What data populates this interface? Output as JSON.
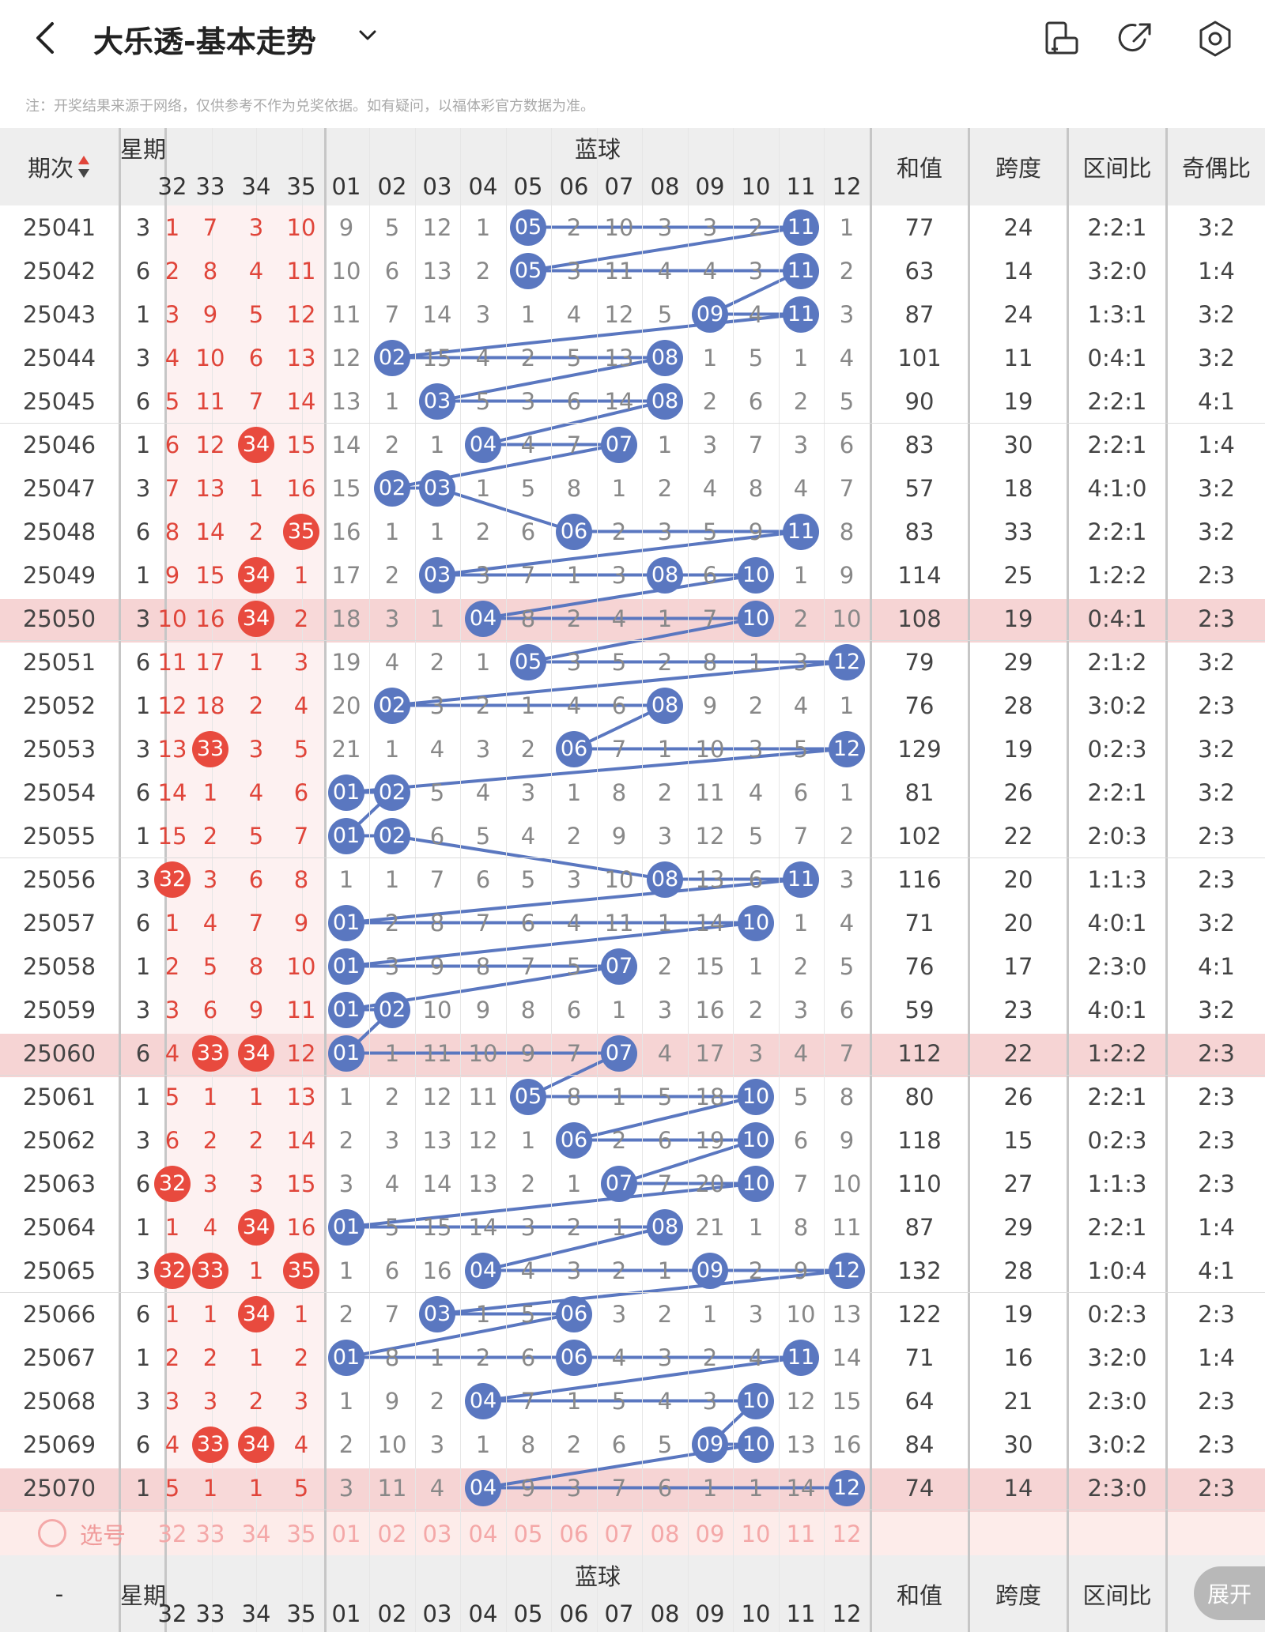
{
  "header": {
    "title": "大乐透-基本走势",
    "note": "注：开奖结果来源于网络，仅供参考不作为兑奖依据。如有疑问，以福体彩官方数据为准。"
  },
  "columns": {
    "period": "期次",
    "week": "星期",
    "blue_group": "蓝球",
    "front_nums": [
      "32",
      "33",
      "34",
      "35"
    ],
    "back_nums": [
      "01",
      "02",
      "03",
      "04",
      "05",
      "06",
      "07",
      "08",
      "09",
      "10",
      "11",
      "12"
    ],
    "sum": "和值",
    "span": "跨度",
    "zone": "区间比",
    "parity": "奇偶比"
  },
  "rows": [
    {
      "p": "25041",
      "w": "3",
      "f": [
        "1",
        "7",
        "3",
        "10"
      ],
      "b": [
        "9",
        "5",
        "12",
        "1",
        "05",
        "2",
        "10",
        "3",
        "3",
        "2",
        "11",
        "1"
      ],
      "s": "77",
      "sp": "24",
      "z": "2:2:1",
      "o": "3:2"
    },
    {
      "p": "25042",
      "w": "6",
      "f": [
        "2",
        "8",
        "4",
        "11"
      ],
      "b": [
        "10",
        "6",
        "13",
        "2",
        "05",
        "3",
        "11",
        "4",
        "4",
        "3",
        "11",
        "2"
      ],
      "s": "63",
      "sp": "14",
      "z": "3:2:0",
      "o": "1:4"
    },
    {
      "p": "25043",
      "w": "1",
      "f": [
        "3",
        "9",
        "5",
        "12"
      ],
      "b": [
        "11",
        "7",
        "14",
        "3",
        "1",
        "4",
        "12",
        "5",
        "09",
        "4",
        "11",
        "3"
      ],
      "s": "87",
      "sp": "24",
      "z": "1:3:1",
      "o": "3:2"
    },
    {
      "p": "25044",
      "w": "3",
      "f": [
        "4",
        "10",
        "6",
        "13"
      ],
      "b": [
        "12",
        "02",
        "15",
        "4",
        "2",
        "5",
        "13",
        "08",
        "1",
        "5",
        "1",
        "4"
      ],
      "s": "101",
      "sp": "11",
      "z": "0:4:1",
      "o": "3:2"
    },
    {
      "p": "25045",
      "w": "6",
      "f": [
        "5",
        "11",
        "7",
        "14"
      ],
      "b": [
        "13",
        "1",
        "03",
        "5",
        "3",
        "6",
        "14",
        "08",
        "2",
        "6",
        "2",
        "5"
      ],
      "s": "90",
      "sp": "19",
      "z": "2:2:1",
      "o": "4:1"
    },
    {
      "p": "25046",
      "w": "1",
      "f": [
        "6",
        "12",
        "34",
        "15"
      ],
      "b": [
        "14",
        "2",
        "1",
        "04",
        "4",
        "7",
        "07",
        "1",
        "3",
        "7",
        "3",
        "6"
      ],
      "s": "83",
      "sp": "30",
      "z": "2:2:1",
      "o": "1:4"
    },
    {
      "p": "25047",
      "w": "3",
      "f": [
        "7",
        "13",
        "1",
        "16"
      ],
      "b": [
        "15",
        "02",
        "03",
        "1",
        "5",
        "8",
        "1",
        "2",
        "4",
        "8",
        "4",
        "7"
      ],
      "s": "57",
      "sp": "18",
      "z": "4:1:0",
      "o": "3:2"
    },
    {
      "p": "25048",
      "w": "6",
      "f": [
        "8",
        "14",
        "2",
        "35"
      ],
      "b": [
        "16",
        "1",
        "1",
        "2",
        "6",
        "06",
        "2",
        "3",
        "5",
        "9",
        "11",
        "8"
      ],
      "s": "83",
      "sp": "33",
      "z": "2:2:1",
      "o": "3:2"
    },
    {
      "p": "25049",
      "w": "1",
      "f": [
        "9",
        "15",
        "34",
        "1"
      ],
      "b": [
        "17",
        "2",
        "03",
        "3",
        "7",
        "1",
        "3",
        "08",
        "6",
        "10",
        "1",
        "9"
      ],
      "s": "114",
      "sp": "25",
      "z": "1:2:2",
      "o": "2:3"
    },
    {
      "p": "25050",
      "w": "3",
      "f": [
        "10",
        "16",
        "34",
        "2"
      ],
      "b": [
        "18",
        "3",
        "1",
        "04",
        "8",
        "2",
        "4",
        "1",
        "7",
        "10",
        "2",
        "10"
      ],
      "s": "108",
      "sp": "19",
      "z": "0:4:1",
      "o": "2:3"
    },
    {
      "p": "25051",
      "w": "6",
      "f": [
        "11",
        "17",
        "1",
        "3"
      ],
      "b": [
        "19",
        "4",
        "2",
        "1",
        "05",
        "3",
        "5",
        "2",
        "8",
        "1",
        "3",
        "12"
      ],
      "s": "79",
      "sp": "29",
      "z": "2:1:2",
      "o": "3:2"
    },
    {
      "p": "25052",
      "w": "1",
      "f": [
        "12",
        "18",
        "2",
        "4"
      ],
      "b": [
        "20",
        "02",
        "3",
        "2",
        "1",
        "4",
        "6",
        "08",
        "9",
        "2",
        "4",
        "1"
      ],
      "s": "76",
      "sp": "28",
      "z": "3:0:2",
      "o": "2:3"
    },
    {
      "p": "25053",
      "w": "3",
      "f": [
        "13",
        "33",
        "3",
        "5"
      ],
      "b": [
        "21",
        "1",
        "4",
        "3",
        "2",
        "06",
        "7",
        "1",
        "10",
        "3",
        "5",
        "12"
      ],
      "s": "129",
      "sp": "19",
      "z": "0:2:3",
      "o": "3:2"
    },
    {
      "p": "25054",
      "w": "6",
      "f": [
        "14",
        "1",
        "4",
        "6"
      ],
      "b": [
        "01",
        "02",
        "5",
        "4",
        "3",
        "1",
        "8",
        "2",
        "11",
        "4",
        "6",
        "1"
      ],
      "s": "81",
      "sp": "26",
      "z": "2:2:1",
      "o": "3:2"
    },
    {
      "p": "25055",
      "w": "1",
      "f": [
        "15",
        "2",
        "5",
        "7"
      ],
      "b": [
        "01",
        "02",
        "6",
        "5",
        "4",
        "2",
        "9",
        "3",
        "12",
        "5",
        "7",
        "2"
      ],
      "s": "102",
      "sp": "22",
      "z": "2:0:3",
      "o": "2:3"
    },
    {
      "p": "25056",
      "w": "3",
      "f": [
        "32",
        "3",
        "6",
        "8"
      ],
      "b": [
        "1",
        "1",
        "7",
        "6",
        "5",
        "3",
        "10",
        "08",
        "13",
        "6",
        "11",
        "3"
      ],
      "s": "116",
      "sp": "20",
      "z": "1:1:3",
      "o": "2:3"
    },
    {
      "p": "25057",
      "w": "6",
      "f": [
        "1",
        "4",
        "7",
        "9"
      ],
      "b": [
        "01",
        "2",
        "8",
        "7",
        "6",
        "4",
        "11",
        "1",
        "14",
        "10",
        "1",
        "4"
      ],
      "s": "71",
      "sp": "20",
      "z": "4:0:1",
      "o": "3:2"
    },
    {
      "p": "25058",
      "w": "1",
      "f": [
        "2",
        "5",
        "8",
        "10"
      ],
      "b": [
        "01",
        "3",
        "9",
        "8",
        "7",
        "5",
        "07",
        "2",
        "15",
        "1",
        "2",
        "5"
      ],
      "s": "76",
      "sp": "17",
      "z": "2:3:0",
      "o": "4:1"
    },
    {
      "p": "25059",
      "w": "3",
      "f": [
        "3",
        "6",
        "9",
        "11"
      ],
      "b": [
        "01",
        "02",
        "10",
        "9",
        "8",
        "6",
        "1",
        "3",
        "16",
        "2",
        "3",
        "6"
      ],
      "s": "59",
      "sp": "23",
      "z": "4:0:1",
      "o": "3:2"
    },
    {
      "p": "25060",
      "w": "6",
      "f": [
        "4",
        "33",
        "34",
        "12"
      ],
      "b": [
        "01",
        "1",
        "11",
        "10",
        "9",
        "7",
        "07",
        "4",
        "17",
        "3",
        "4",
        "7"
      ],
      "s": "112",
      "sp": "22",
      "z": "1:2:2",
      "o": "2:3"
    },
    {
      "p": "25061",
      "w": "1",
      "f": [
        "5",
        "1",
        "1",
        "13"
      ],
      "b": [
        "1",
        "2",
        "12",
        "11",
        "05",
        "8",
        "1",
        "5",
        "18",
        "10",
        "5",
        "8"
      ],
      "s": "80",
      "sp": "26",
      "z": "2:2:1",
      "o": "2:3"
    },
    {
      "p": "25062",
      "w": "3",
      "f": [
        "6",
        "2",
        "2",
        "14"
      ],
      "b": [
        "2",
        "3",
        "13",
        "12",
        "1",
        "06",
        "2",
        "6",
        "19",
        "10",
        "6",
        "9"
      ],
      "s": "118",
      "sp": "15",
      "z": "0:2:3",
      "o": "2:3"
    },
    {
      "p": "25063",
      "w": "6",
      "f": [
        "32",
        "3",
        "3",
        "15"
      ],
      "b": [
        "3",
        "4",
        "14",
        "13",
        "2",
        "1",
        "07",
        "7",
        "20",
        "10",
        "7",
        "10"
      ],
      "s": "110",
      "sp": "27",
      "z": "1:1:3",
      "o": "2:3"
    },
    {
      "p": "25064",
      "w": "1",
      "f": [
        "1",
        "4",
        "34",
        "16"
      ],
      "b": [
        "01",
        "5",
        "15",
        "14",
        "3",
        "2",
        "1",
        "08",
        "21",
        "1",
        "8",
        "11"
      ],
      "s": "87",
      "sp": "29",
      "z": "2:2:1",
      "o": "1:4"
    },
    {
      "p": "25065",
      "w": "3",
      "f": [
        "32",
        "33",
        "1",
        "35"
      ],
      "b": [
        "1",
        "6",
        "16",
        "04",
        "4",
        "3",
        "2",
        "1",
        "09",
        "2",
        "9",
        "12"
      ],
      "s": "132",
      "sp": "28",
      "z": "1:0:4",
      "o": "4:1"
    },
    {
      "p": "25066",
      "w": "6",
      "f": [
        "1",
        "1",
        "34",
        "1"
      ],
      "b": [
        "2",
        "7",
        "03",
        "1",
        "5",
        "06",
        "3",
        "2",
        "1",
        "3",
        "10",
        "13"
      ],
      "s": "122",
      "sp": "19",
      "z": "0:2:3",
      "o": "2:3"
    },
    {
      "p": "25067",
      "w": "1",
      "f": [
        "2",
        "2",
        "1",
        "2"
      ],
      "b": [
        "01",
        "8",
        "1",
        "2",
        "6",
        "06",
        "4",
        "3",
        "2",
        "4",
        "11",
        "14"
      ],
      "s": "71",
      "sp": "16",
      "z": "3:2:0",
      "o": "1:4"
    },
    {
      "p": "25068",
      "w": "3",
      "f": [
        "3",
        "3",
        "2",
        "3"
      ],
      "b": [
        "1",
        "9",
        "2",
        "04",
        "7",
        "1",
        "5",
        "4",
        "3",
        "10",
        "12",
        "15"
      ],
      "s": "64",
      "sp": "21",
      "z": "2:3:0",
      "o": "2:3"
    },
    {
      "p": "25069",
      "w": "6",
      "f": [
        "4",
        "33",
        "34",
        "4"
      ],
      "b": [
        "2",
        "10",
        "3",
        "1",
        "8",
        "2",
        "6",
        "5",
        "09",
        "10",
        "13",
        "16"
      ],
      "s": "84",
      "sp": "30",
      "z": "3:0:2",
      "o": "2:3"
    },
    {
      "p": "25070",
      "w": "1",
      "f": [
        "5",
        "1",
        "1",
        "5"
      ],
      "b": [
        "3",
        "11",
        "4",
        "04",
        "9",
        "3",
        "7",
        "6",
        "1",
        "1",
        "14",
        "12"
      ],
      "s": "74",
      "sp": "14",
      "z": "2:3:0",
      "o": "2:3"
    }
  ],
  "select_row": {
    "label": "选号"
  },
  "footer": {
    "period": "-",
    "expand": "展开"
  },
  "colors": {
    "blue_ball": "#5a77c0",
    "red_ball": "#e84a3e",
    "highlight": "#f6d4d4"
  }
}
